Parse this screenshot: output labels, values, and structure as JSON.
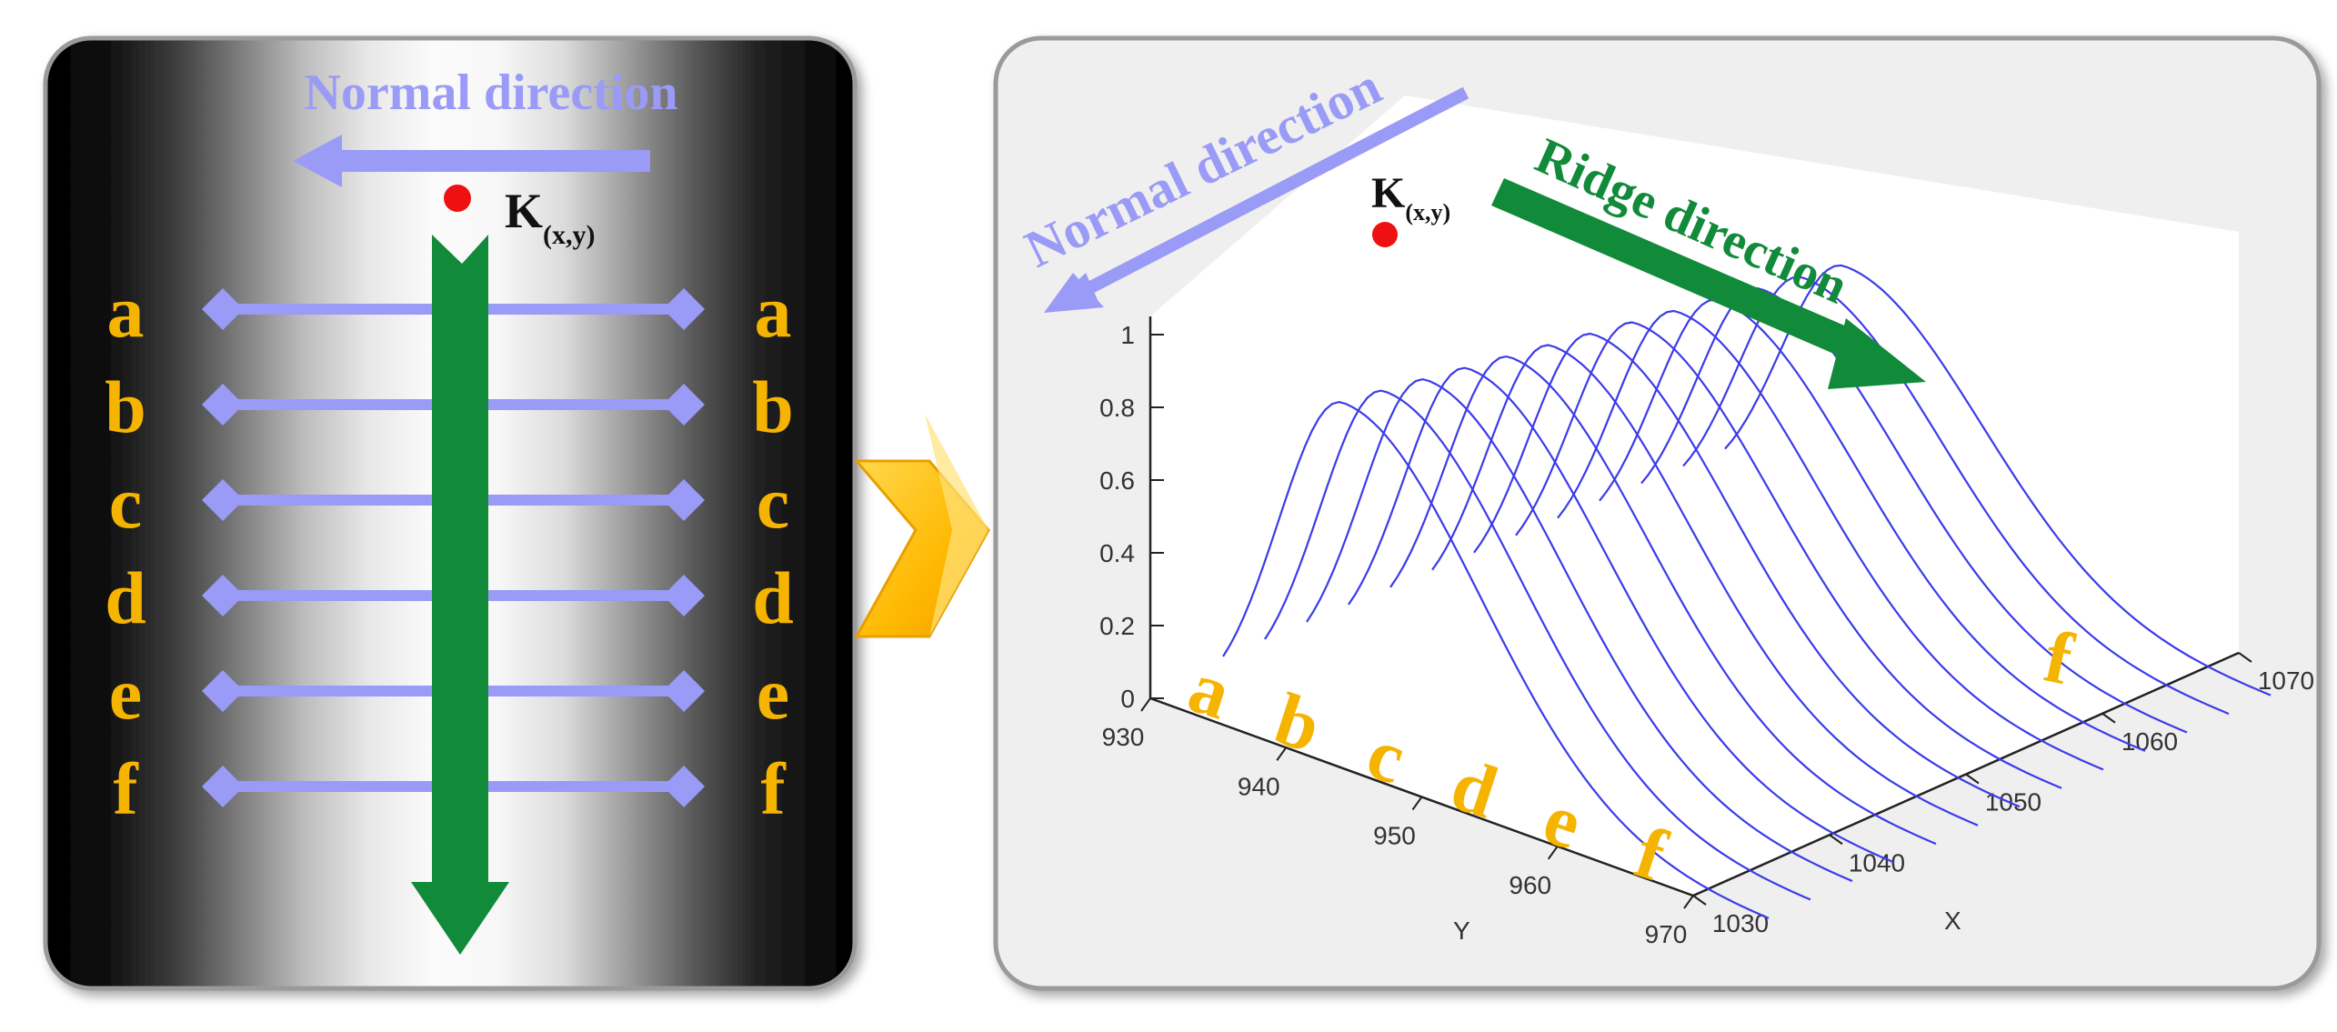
{
  "left_panel": {
    "normal_label": "Normal direction",
    "k_label": "K",
    "k_sub": "(x,y)",
    "row_letters": [
      "a",
      "b",
      "c",
      "d",
      "e",
      "f"
    ]
  },
  "right_panel": {
    "normal_label": "Normal direction",
    "ridge_label": "Ridge direction",
    "k_label": "K",
    "k_sub": "(x,y)",
    "curve_letters": [
      "a",
      "b",
      "c",
      "d",
      "e",
      "f"
    ],
    "end_letter": "f"
  },
  "chart_data": {
    "type": "line",
    "z_ticks": [
      "0",
      "0.2",
      "0.4",
      "0.6",
      "0.8",
      "1"
    ],
    "y_ticks": [
      "930",
      "940",
      "950",
      "960",
      "970"
    ],
    "x_ticks": [
      "1030",
      "1040",
      "1050",
      "1060",
      "1070"
    ],
    "ylabel": "Y",
    "xlabel": "X",
    "zlim": [
      0,
      1
    ],
    "curve_peaks": [
      1.0,
      0.98,
      0.96,
      0.94,
      0.92,
      0.9,
      0.88,
      0.86,
      0.84,
      0.82,
      0.8,
      0.78,
      0.76
    ]
  },
  "colors": {
    "normal_arrow": "#9a9af7",
    "ridge_arrow": "#118a3a",
    "letters": "#f5b400",
    "curves": "#3b3bea",
    "k_point": "#ee1111",
    "chevron": "#ffc000"
  }
}
